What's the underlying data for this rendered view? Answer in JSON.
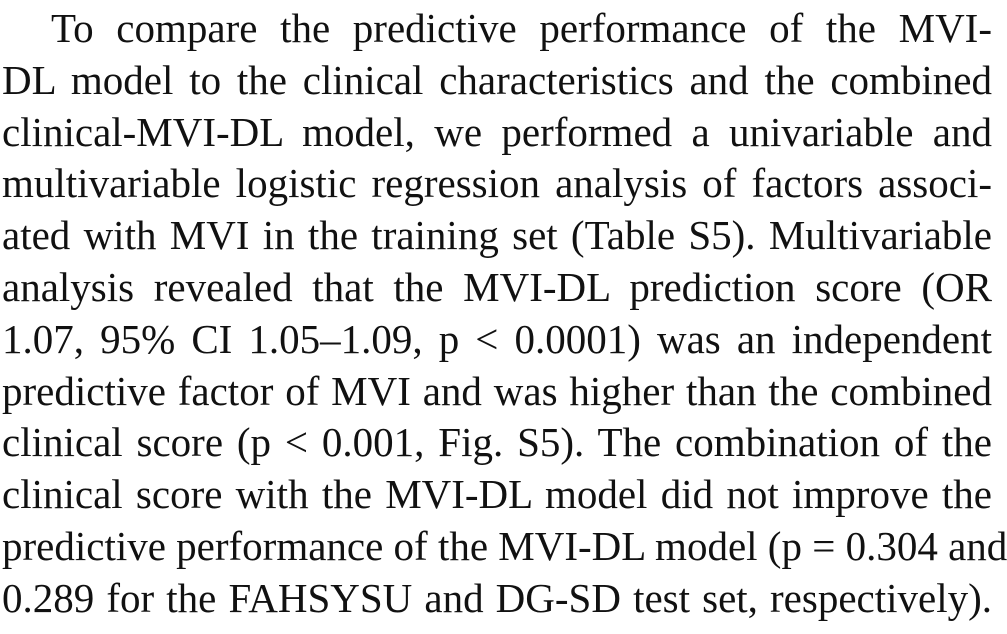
{
  "paragraph": {
    "lines": [
      "To compare the predictive performance of the MVI-",
      "DL model to the clinical characteristics and the combined",
      "clinical-MVI-DL model, we performed a univariable and",
      "multivariable logistic regression analysis of factors associ-",
      "ated with MVI in the training set (Table S5). Multivariable",
      "analysis revealed that the MVI-DL prediction score (OR",
      "1.07, 95% CI 1.05–1.09, p < 0.0001) was an independent",
      "predictive factor of MVI and was higher than the combined",
      "clinical score (p < 0.001, Fig. S5). The combination of the",
      "clinical score with the MVI-DL model did not improve the",
      "predictive performance of the MVI-DL model (p = 0.304 and",
      "0.289 for the FAHSYSU and DG-SD test set, respectively)."
    ]
  }
}
